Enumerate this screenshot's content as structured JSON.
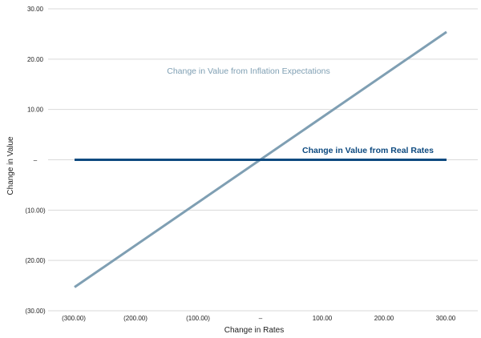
{
  "chart_data": {
    "type": "line",
    "title": "",
    "xlabel": "Change in Rates",
    "ylabel": "Change in Value",
    "xlim": [
      -400,
      400
    ],
    "ylim": [
      -30,
      30
    ],
    "x_ticks": [
      -300,
      -200,
      -100,
      0,
      100,
      200,
      300
    ],
    "x_tick_labels": [
      "(300.00)",
      "(200.00)",
      "(100.00)",
      "–",
      "100.00",
      "200.00",
      "300.00"
    ],
    "y_ticks": [
      30,
      20,
      10,
      0,
      -10,
      -20,
      -30
    ],
    "y_tick_labels": [
      "30.00",
      "20.00",
      "10.00",
      "–",
      "(10.00)",
      "(20.00)",
      "(30.00)"
    ],
    "grid": "horizontal",
    "series": [
      {
        "name": "Change in Value from Inflation Expectations",
        "color": "#7f9fb3",
        "x": [
          -300,
          300
        ],
        "y": [
          -25.3,
          25.4
        ]
      },
      {
        "name": "Change in Value from Real Rates",
        "color": "#0d4a80",
        "x": [
          -300,
          300
        ],
        "y": [
          0,
          0
        ]
      }
    ]
  }
}
